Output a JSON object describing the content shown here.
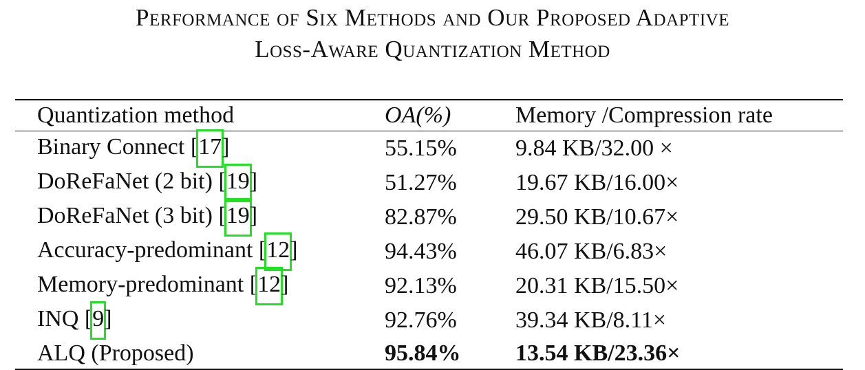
{
  "caption": [
    "Performance of Six Methods and Our Proposed Adaptive",
    "Loss-Aware Quantization Method"
  ],
  "table": {
    "header": [
      "Quantization method",
      "OA(%)",
      "Memory /Compression rate"
    ],
    "rows": [
      {
        "method": [
          "Binary Connect [",
          "17",
          "]"
        ],
        "oa": "55.15%",
        "memory": "9.84 KB/32.00 ×"
      },
      {
        "method": [
          "DoReFaNet (2 bit) [",
          "19",
          "]"
        ],
        "oa": "51.27%",
        "memory": "19.67 KB/16.00×"
      },
      {
        "method": [
          "DoReFaNet (3 bit) [",
          "19",
          "]"
        ],
        "oa": "82.87%",
        "memory": "29.50 KB/10.67×"
      },
      {
        "method": [
          "Accuracy-predominant [",
          "12",
          "]"
        ],
        "oa": "94.43%",
        "memory": "46.07 KB/6.83×"
      },
      {
        "method": [
          "Memory-predominant [",
          "12",
          "]"
        ],
        "oa": "92.13%",
        "memory": "20.31 KB/15.50×"
      },
      {
        "method": [
          "INQ [",
          "9",
          "]"
        ],
        "oa": "92.76%",
        "memory": "39.34 KB/8.11×"
      },
      {
        "method": [
          "ALQ (Proposed)"
        ],
        "oa": "95.84%",
        "memory": "13.54 KB/23.36×",
        "bold": true
      }
    ]
  }
}
